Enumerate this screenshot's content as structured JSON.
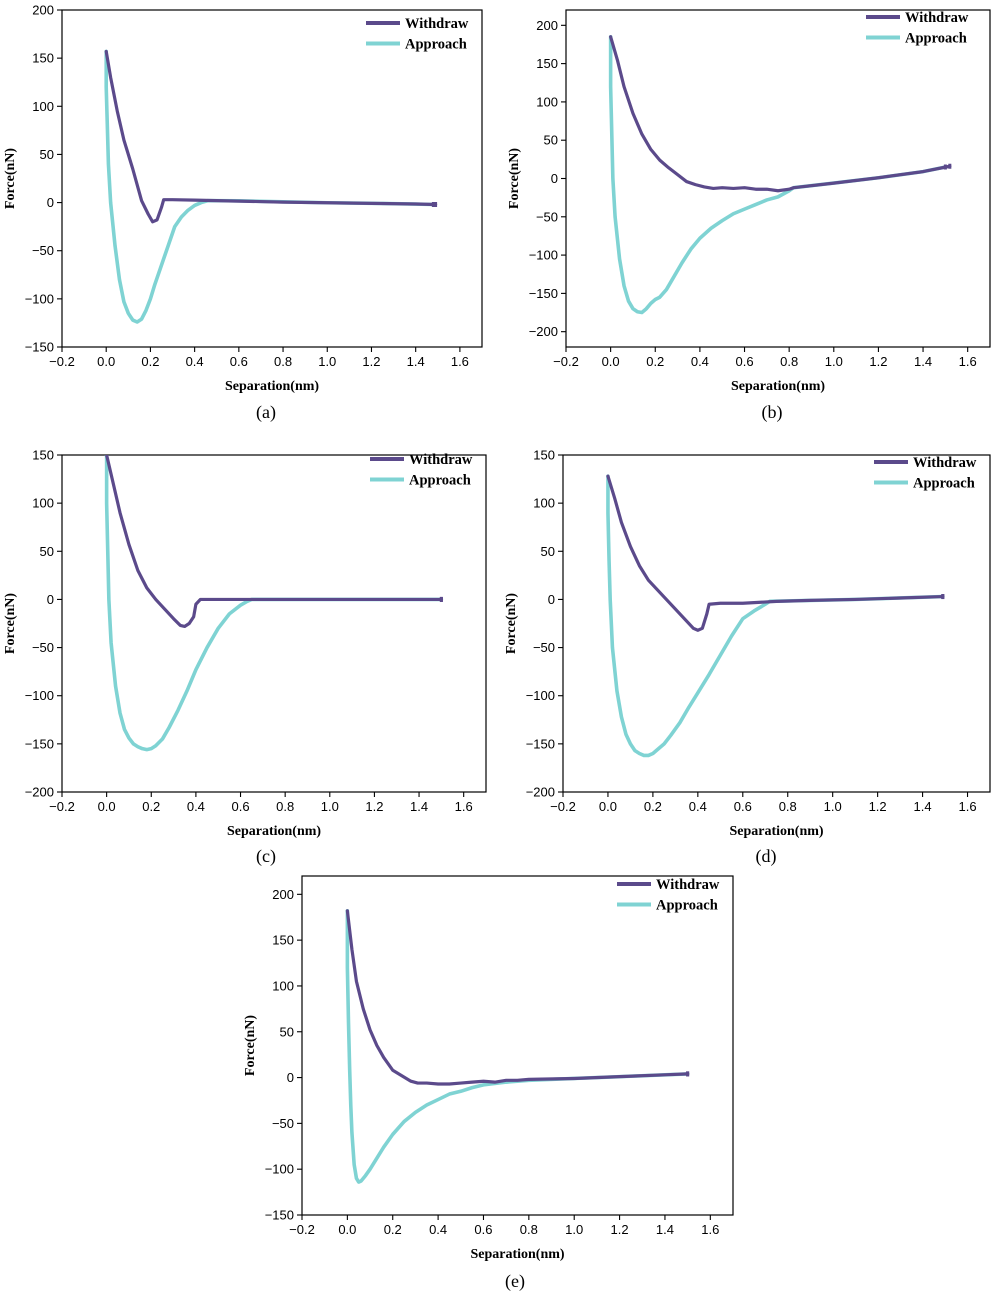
{
  "colors": {
    "withdraw": "#5b4a8b",
    "approach": "#7fd3d3"
  },
  "chart_data": [
    {
      "type": "line",
      "panel_label": "(a)",
      "xlabel": "Separation(nm)",
      "ylabel": "Force(nN)",
      "xlim": [
        -0.2,
        1.7
      ],
      "ylim": [
        -150,
        200
      ],
      "xticks": [
        "−0.2",
        "0.0",
        "0.2",
        "0.4",
        "0.6",
        "0.8",
        "1.0",
        "1.2",
        "1.4",
        "1.6"
      ],
      "xtick_values": [
        -0.2,
        0,
        0.2,
        0.4,
        0.6,
        0.8,
        1.0,
        1.2,
        1.4,
        1.6
      ],
      "yticks": [
        "−150",
        "−100",
        "−50",
        "0",
        "50",
        "100",
        "150",
        "200"
      ],
      "ytick_values": [
        -150,
        -100,
        -50,
        0,
        50,
        100,
        150,
        200
      ],
      "legend": "top-right",
      "series": [
        {
          "name": "Withdraw",
          "x": [
            0.0,
            0.02,
            0.05,
            0.08,
            0.12,
            0.16,
            0.19,
            0.21,
            0.23,
            0.25,
            0.26,
            0.3,
            0.4,
            0.5,
            0.6,
            0.8,
            1.0,
            1.2,
            1.4,
            1.49
          ],
          "y": [
            157,
            130,
            95,
            65,
            35,
            2,
            -12,
            -20,
            -18,
            -5,
            3,
            3,
            2.5,
            2,
            1.5,
            0.5,
            -0.2,
            -0.8,
            -1.5,
            -2
          ]
        },
        {
          "name": "Approach",
          "x": [
            0.0,
            0.0,
            0.005,
            0.01,
            0.02,
            0.04,
            0.06,
            0.08,
            0.1,
            0.12,
            0.14,
            0.16,
            0.18,
            0.2,
            0.22,
            0.25,
            0.28,
            0.31,
            0.34,
            0.37,
            0.4,
            0.43,
            0.46,
            0.5,
            0.6,
            0.8,
            1.0,
            1.2,
            1.4,
            1.48
          ],
          "y": [
            157,
            120,
            80,
            40,
            0,
            -45,
            -80,
            -103,
            -115,
            -122,
            -124,
            -121,
            -112,
            -100,
            -85,
            -65,
            -45,
            -25,
            -15,
            -8,
            -3,
            0,
            2,
            2,
            1.8,
            0.8,
            -0.2,
            -0.8,
            -1.5,
            -2
          ]
        }
      ]
    },
    {
      "type": "line",
      "panel_label": "(b)",
      "xlabel": "Separation(nm)",
      "ylabel": "Force(nN)",
      "xlim": [
        -0.2,
        1.7
      ],
      "ylim": [
        -220,
        220
      ],
      "xticks": [
        "−0.2",
        "0.0",
        "0.2",
        "0.4",
        "0.6",
        "0.8",
        "1.0",
        "1.2",
        "1.4",
        "1.6"
      ],
      "xtick_values": [
        -0.2,
        0,
        0.2,
        0.4,
        0.6,
        0.8,
        1.0,
        1.2,
        1.4,
        1.6
      ],
      "yticks": [
        "−200",
        "−150",
        "−100",
        "−50",
        "0",
        "50",
        "100",
        "150",
        "200"
      ],
      "ytick_values": [
        -200,
        -150,
        -100,
        -50,
        0,
        50,
        100,
        150,
        200
      ],
      "legend": "top-right",
      "series": [
        {
          "name": "Withdraw",
          "x": [
            0.0,
            0.03,
            0.06,
            0.1,
            0.14,
            0.18,
            0.22,
            0.26,
            0.3,
            0.34,
            0.38,
            0.42,
            0.46,
            0.5,
            0.55,
            0.6,
            0.65,
            0.7,
            0.75,
            0.8,
            0.82,
            1.0,
            1.2,
            1.4,
            1.52
          ],
          "y": [
            185,
            155,
            120,
            85,
            58,
            38,
            24,
            14,
            5,
            -4,
            -8,
            -11,
            -13,
            -12,
            -13,
            -12,
            -14,
            -14,
            -16,
            -14,
            -12,
            -6,
            1,
            9,
            16
          ]
        },
        {
          "name": "Approach",
          "x": [
            0.0,
            0.0,
            0.005,
            0.01,
            0.02,
            0.04,
            0.06,
            0.08,
            0.1,
            0.12,
            0.14,
            0.16,
            0.18,
            0.2,
            0.22,
            0.25,
            0.28,
            0.32,
            0.36,
            0.4,
            0.45,
            0.5,
            0.55,
            0.6,
            0.65,
            0.7,
            0.75,
            0.8,
            0.82,
            1.0,
            1.2,
            1.4,
            1.5
          ],
          "y": [
            185,
            120,
            60,
            0,
            -50,
            -105,
            -140,
            -160,
            -170,
            -174,
            -175,
            -170,
            -163,
            -158,
            -155,
            -145,
            -130,
            -110,
            -92,
            -78,
            -65,
            -55,
            -46,
            -40,
            -34,
            -28,
            -24,
            -16,
            -12,
            -6,
            1,
            9,
            15
          ]
        }
      ]
    },
    {
      "type": "line",
      "panel_label": "(c)",
      "xlabel": "Separation(nm)",
      "ylabel": "Force(nN)",
      "xlim": [
        -0.2,
        1.7
      ],
      "ylim": [
        -200,
        150
      ],
      "xticks": [
        "−0.2",
        "0.0",
        "0.2",
        "0.4",
        "0.6",
        "0.8",
        "1.0",
        "1.2",
        "1.4",
        "1.6"
      ],
      "xtick_values": [
        -0.2,
        0,
        0.2,
        0.4,
        0.6,
        0.8,
        1.0,
        1.2,
        1.4,
        1.6
      ],
      "yticks": [
        "−200",
        "−150",
        "−100",
        "−50",
        "0",
        "50",
        "100",
        "150"
      ],
      "ytick_values": [
        -200,
        -150,
        -100,
        -50,
        0,
        50,
        100,
        150
      ],
      "legend": "top-right",
      "series": [
        {
          "name": "Withdraw",
          "x": [
            0.0,
            0.03,
            0.06,
            0.1,
            0.14,
            0.18,
            0.22,
            0.26,
            0.3,
            0.33,
            0.35,
            0.37,
            0.39,
            0.4,
            0.42,
            0.5,
            0.6,
            1.0,
            1.5
          ],
          "y": [
            150,
            120,
            90,
            57,
            30,
            12,
            0,
            -10,
            -20,
            -27,
            -28,
            -25,
            -18,
            -5,
            0,
            0,
            0,
            0,
            0
          ]
        },
        {
          "name": "Approach",
          "x": [
            0.0,
            0.0,
            0.005,
            0.01,
            0.02,
            0.04,
            0.06,
            0.08,
            0.1,
            0.12,
            0.14,
            0.16,
            0.18,
            0.2,
            0.22,
            0.25,
            0.28,
            0.32,
            0.36,
            0.4,
            0.45,
            0.5,
            0.55,
            0.6,
            0.63,
            0.65,
            0.8,
            1.0,
            1.5
          ],
          "y": [
            150,
            100,
            50,
            0,
            -45,
            -90,
            -118,
            -135,
            -144,
            -150,
            -153,
            -155,
            -156,
            -155,
            -152,
            -145,
            -133,
            -115,
            -95,
            -73,
            -50,
            -30,
            -15,
            -6,
            -2,
            0,
            0,
            0,
            0
          ]
        }
      ]
    },
    {
      "type": "line",
      "panel_label": "(d)",
      "xlabel": "Separation(nm)",
      "ylabel": "Force(nN)",
      "xlim": [
        -0.2,
        1.7
      ],
      "ylim": [
        -200,
        150
      ],
      "xticks": [
        "−0.2",
        "0.0",
        "0.2",
        "0.4",
        "0.6",
        "0.8",
        "1.0",
        "1.2",
        "1.4",
        "1.6"
      ],
      "xtick_values": [
        -0.2,
        0,
        0.2,
        0.4,
        0.6,
        0.8,
        1.0,
        1.2,
        1.4,
        1.6
      ],
      "yticks": [
        "−200",
        "−150",
        "−100",
        "−50",
        "0",
        "50",
        "100",
        "150"
      ],
      "ytick_values": [
        -200,
        -150,
        -100,
        -50,
        0,
        50,
        100,
        150
      ],
      "legend": "top-right",
      "series": [
        {
          "name": "Withdraw",
          "x": [
            0.0,
            0.03,
            0.06,
            0.1,
            0.14,
            0.18,
            0.22,
            0.26,
            0.3,
            0.34,
            0.38,
            0.4,
            0.42,
            0.44,
            0.45,
            0.5,
            0.6,
            0.75,
            0.9,
            1.1,
            1.3,
            1.49
          ],
          "y": [
            128,
            105,
            80,
            55,
            35,
            20,
            10,
            0,
            -10,
            -20,
            -30,
            -32,
            -30,
            -15,
            -5,
            -4,
            -4,
            -2,
            -1,
            0,
            1.5,
            3
          ]
        },
        {
          "name": "Approach",
          "x": [
            0.0,
            0.0,
            0.005,
            0.01,
            0.02,
            0.04,
            0.06,
            0.08,
            0.1,
            0.12,
            0.14,
            0.16,
            0.18,
            0.2,
            0.22,
            0.25,
            0.28,
            0.32,
            0.36,
            0.4,
            0.45,
            0.5,
            0.55,
            0.6,
            0.65,
            0.7,
            0.72,
            0.9,
            1.1,
            1.3,
            1.49
          ],
          "y": [
            128,
            90,
            40,
            0,
            -50,
            -95,
            -122,
            -140,
            -150,
            -157,
            -160,
            -162,
            -162,
            -160,
            -156,
            -150,
            -141,
            -128,
            -112,
            -97,
            -78,
            -58,
            -38,
            -20,
            -12,
            -5,
            -2,
            -1,
            0,
            1.5,
            3
          ]
        }
      ]
    },
    {
      "type": "line",
      "panel_label": "(e)",
      "xlabel": "Separation(nm)",
      "ylabel": "Force(nN)",
      "xlim": [
        -0.2,
        1.7
      ],
      "ylim": [
        -150,
        220
      ],
      "xticks": [
        "−0.2",
        "0.0",
        "0.2",
        "0.4",
        "0.6",
        "0.8",
        "1.0",
        "1.2",
        "1.4",
        "1.6"
      ],
      "xtick_values": [
        -0.2,
        0,
        0.2,
        0.4,
        0.6,
        0.8,
        1.0,
        1.2,
        1.4,
        1.6
      ],
      "yticks": [
        "−150",
        "−100",
        "−50",
        "0",
        "50",
        "100",
        "150",
        "200"
      ],
      "ytick_values": [
        -150,
        -100,
        -50,
        0,
        50,
        100,
        150,
        200
      ],
      "legend": "top-right",
      "series": [
        {
          "name": "Withdraw",
          "x": [
            0.0,
            0.02,
            0.04,
            0.07,
            0.1,
            0.13,
            0.16,
            0.2,
            0.24,
            0.28,
            0.31,
            0.35,
            0.4,
            0.45,
            0.5,
            0.55,
            0.6,
            0.65,
            0.7,
            0.75,
            0.8,
            1.0,
            1.2,
            1.4,
            1.5
          ],
          "y": [
            182,
            140,
            105,
            75,
            52,
            35,
            22,
            8,
            2,
            -4,
            -6,
            -6,
            -7,
            -7,
            -6,
            -5,
            -4,
            -5,
            -3,
            -3,
            -2,
            -1,
            1,
            3,
            4
          ]
        },
        {
          "name": "Approach",
          "x": [
            0.0,
            0.0,
            0.005,
            0.01,
            0.015,
            0.02,
            0.03,
            0.04,
            0.05,
            0.06,
            0.08,
            0.1,
            0.13,
            0.16,
            0.2,
            0.25,
            0.3,
            0.35,
            0.4,
            0.45,
            0.5,
            0.55,
            0.6,
            0.7,
            0.8,
            1.0,
            1.2,
            1.4,
            1.5
          ],
          "y": [
            182,
            120,
            60,
            10,
            -30,
            -60,
            -95,
            -110,
            -114,
            -113,
            -107,
            -100,
            -88,
            -76,
            -62,
            -48,
            -38,
            -30,
            -24,
            -18,
            -15,
            -11,
            -8,
            -5,
            -3,
            -1,
            1,
            3,
            4
          ]
        }
      ]
    }
  ]
}
